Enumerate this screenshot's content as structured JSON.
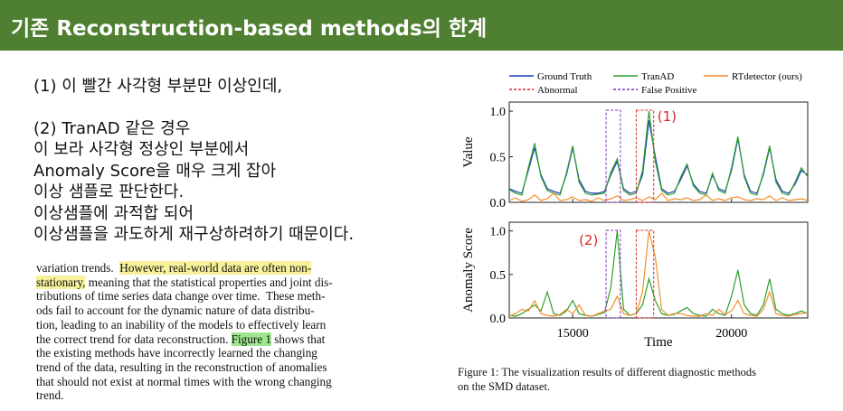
{
  "header": {
    "title": "기존 Reconstruction-based methods의 한계"
  },
  "notes": [
    "(1) 이 빨간 사각형 부분만 이상인데,",
    "(2) TranAD 같은 경우",
    "이 보라 사각형 정상인 부분에서",
    "Anomaly Score을 매우 크게 잡아",
    "이상 샘플로 판단한다.",
    "이상샘플에 과적합 되어",
    "이상샘플을 과도하게 재구상하려하기 때문이다."
  ],
  "excerpt": [
    [
      "variation trends.  ",
      {
        "text": "However, real-world data are often non-",
        "highlight": "#f6f19a"
      }
    ],
    [
      {
        "text": "stationary,",
        "highlight": "#f6f19a"
      },
      " meaning that the statistical properties and joint dis-"
    ],
    [
      "tributions of time series data change over time.  These meth-"
    ],
    [
      "ods fail to account for the dynamic nature of data distribu-"
    ],
    [
      "tion, leading to an inability of the models to effectively learn"
    ],
    [
      "the correct trend for data reconstruction. ",
      {
        "text": "Figure 1",
        "highlight": "#9fe58f"
      },
      " shows that"
    ],
    [
      "the existing methods have incorrectly learned the changing"
    ],
    [
      "trend of the data, resulting in the reconstruction of anomalies"
    ],
    [
      "that should not exist at normal times with the wrong changing"
    ],
    [
      "trend."
    ]
  ],
  "chart_data": [
    {
      "type": "line",
      "ylabel": "Value",
      "annotation": "(1)",
      "annotation_color": "#d62728",
      "x": [
        13000,
        13200,
        13400,
        13600,
        13800,
        14000,
        14200,
        14400,
        14600,
        14800,
        15000,
        15200,
        15400,
        15600,
        15800,
        16000,
        16200,
        16400,
        16600,
        16800,
        17000,
        17200,
        17400,
        17600,
        17800,
        18000,
        18200,
        18400,
        18600,
        18800,
        19000,
        19200,
        19400,
        19600,
        19800,
        20000,
        20200,
        20400,
        20600,
        20800,
        21000,
        21200,
        21400,
        21600,
        21800,
        22000,
        22200,
        22400
      ],
      "xlim": [
        13000,
        22400
      ],
      "xticks": [
        15000,
        20000
      ],
      "ylim": [
        0,
        1.1
      ],
      "yticks": [
        {
          "value": 0,
          "label": "0.0"
        },
        {
          "value": 0.5,
          "label": "0.5"
        },
        {
          "value": 1,
          "label": "1.0"
        }
      ],
      "series": [
        {
          "name": "Ground Truth",
          "color": "#1f3cbf",
          "values": [
            0.15,
            0.12,
            0.1,
            0.35,
            0.6,
            0.3,
            0.15,
            0.12,
            0.1,
            0.3,
            0.6,
            0.25,
            0.12,
            0.1,
            0.1,
            0.12,
            0.3,
            0.45,
            0.15,
            0.1,
            0.12,
            0.3,
            0.9,
            0.5,
            0.15,
            0.1,
            0.12,
            0.25,
            0.4,
            0.2,
            0.12,
            0.1,
            0.3,
            0.15,
            0.12,
            0.35,
            0.7,
            0.3,
            0.12,
            0.1,
            0.3,
            0.6,
            0.25,
            0.12,
            0.1,
            0.2,
            0.35,
            0.3
          ]
        },
        {
          "name": "TranAD",
          "color": "#2ca02c",
          "values": [
            0.14,
            0.1,
            0.08,
            0.38,
            0.65,
            0.28,
            0.13,
            0.1,
            0.08,
            0.32,
            0.62,
            0.22,
            0.1,
            0.08,
            0.09,
            0.1,
            0.33,
            0.48,
            0.13,
            0.08,
            0.1,
            0.35,
            1.0,
            0.45,
            0.13,
            0.08,
            0.1,
            0.28,
            0.42,
            0.18,
            0.1,
            0.08,
            0.32,
            0.13,
            0.1,
            0.38,
            0.72,
            0.28,
            0.1,
            0.08,
            0.32,
            0.62,
            0.22,
            0.1,
            0.08,
            0.22,
            0.38,
            0.28
          ]
        },
        {
          "name": "RTdetector (ours)",
          "color": "#f28e2b",
          "values": [
            0.02,
            0.05,
            0.01,
            0.03,
            0.08,
            0.02,
            0.04,
            0.1,
            0.02,
            0.03,
            0.06,
            0.02,
            0.03,
            0.01,
            0.05,
            0.02,
            0.04,
            0.07,
            0.02,
            0.03,
            0.05,
            0.02,
            0.06,
            0.03,
            0.1,
            0.02,
            0.04,
            0.03,
            0.05,
            0.02,
            0.03,
            0.08,
            0.02,
            0.04,
            0.02,
            0.05,
            0.06,
            0.03,
            0.02,
            0.04,
            0.03,
            0.07,
            0.02,
            0.05,
            0.02,
            0.03,
            0.04,
            0.02
          ]
        }
      ],
      "regions": [
        {
          "name": "Abnormal",
          "color": "#d62728",
          "x": [
            17000,
            17550
          ]
        },
        {
          "name": "False Positive",
          "color": "#7b2fbf",
          "x": [
            16050,
            16500
          ]
        }
      ]
    },
    {
      "type": "line",
      "ylabel": "Anomaly Score",
      "xlabel": "Time",
      "annotation": "(2)",
      "annotation_color": "#d62728",
      "x": [
        13000,
        13200,
        13400,
        13600,
        13800,
        14000,
        14200,
        14400,
        14600,
        14800,
        15000,
        15200,
        15400,
        15600,
        15800,
        16000,
        16200,
        16400,
        16600,
        16800,
        17000,
        17200,
        17400,
        17600,
        17800,
        18000,
        18200,
        18400,
        18600,
        18800,
        19000,
        19200,
        19400,
        19600,
        19800,
        20000,
        20200,
        20400,
        20600,
        20800,
        21000,
        21200,
        21400,
        21600,
        21800,
        22000,
        22200,
        22400
      ],
      "xlim": [
        13000,
        22400
      ],
      "xticks": [
        15000,
        20000
      ],
      "ylim": [
        0,
        1.1
      ],
      "yticks": [
        {
          "value": 0,
          "label": "0.0"
        },
        {
          "value": 0.5,
          "label": "0.5"
        },
        {
          "value": 1,
          "label": "1.0"
        }
      ],
      "series": [
        {
          "name": "TranAD",
          "color": "#2ca02c",
          "values": [
            0.03,
            0.02,
            0.05,
            0.1,
            0.15,
            0.08,
            0.3,
            0.05,
            0.03,
            0.08,
            0.2,
            0.05,
            0.03,
            0.02,
            0.04,
            0.06,
            0.35,
            1.0,
            0.1,
            0.03,
            0.05,
            0.15,
            0.45,
            0.2,
            0.05,
            0.03,
            0.04,
            0.08,
            0.12,
            0.05,
            0.03,
            0.02,
            0.1,
            0.05,
            0.03,
            0.25,
            0.55,
            0.15,
            0.05,
            0.03,
            0.15,
            0.45,
            0.1,
            0.05,
            0.03,
            0.05,
            0.08,
            0.05
          ]
        },
        {
          "name": "RTdetector (ours)",
          "color": "#f28e2b",
          "values": [
            0.02,
            0.05,
            0.1,
            0.08,
            0.2,
            0.05,
            0.03,
            0.02,
            0.04,
            0.1,
            0.05,
            0.15,
            0.03,
            0.02,
            0.05,
            0.08,
            0.1,
            0.25,
            0.05,
            0.03,
            0.05,
            0.3,
            1.0,
            0.7,
            0.1,
            0.03,
            0.05,
            0.05,
            0.03,
            0.02,
            0.02,
            0.05,
            0.03,
            0.1,
            0.04,
            0.08,
            0.2,
            0.05,
            0.03,
            0.02,
            0.1,
            0.3,
            0.05,
            0.03,
            0.02,
            0.04,
            0.05,
            0.06
          ]
        }
      ]
    }
  ],
  "caption": [
    "Figure 1: The visualization results of different diagnostic methods",
    "on the SMD dataset."
  ]
}
